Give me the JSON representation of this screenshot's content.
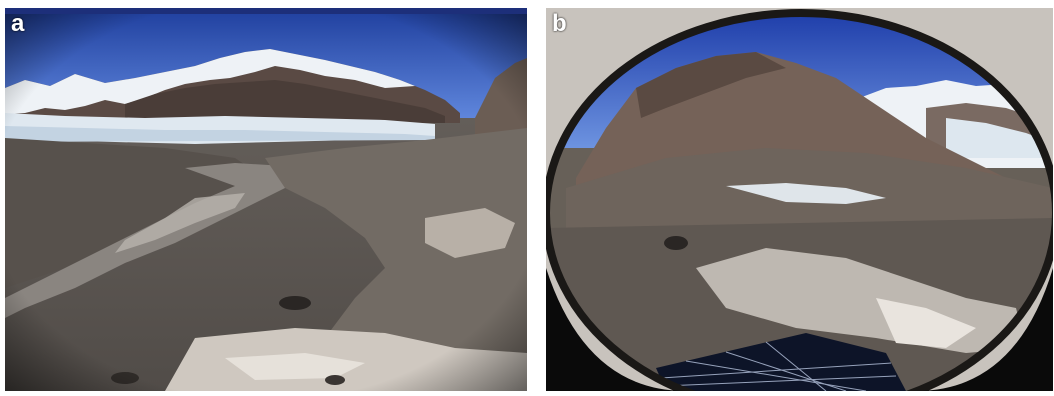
{
  "panels": [
    {
      "label": "a",
      "overlay_left": "",
      "overlay_right": "",
      "description_icon": "glacier-camera-photo"
    },
    {
      "label": "b",
      "description_icon": "fisheye-camera-photo"
    }
  ],
  "colors": {
    "sky": "#2f56c4",
    "snow": "#eef2f6",
    "moraine": "#6d6660",
    "camera_bar": "#1d2f7a"
  }
}
